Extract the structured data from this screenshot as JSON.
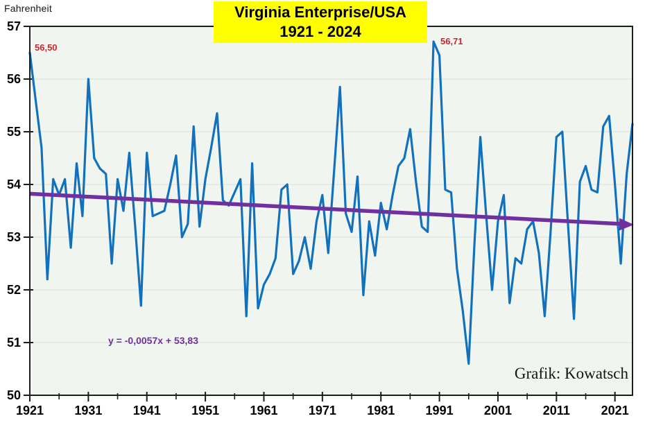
{
  "header": {
    "title_line1": "Virginia Enterprise/USA",
    "title_line2": "1921 - 2024",
    "unit_label": "Fahrenheit"
  },
  "annotations": {
    "start_value": "56,50",
    "peak_value": "56,71",
    "trend_equation": "y = -0,0057x + 53,83",
    "credit": "Grafik: Kowatsch"
  },
  "colors": {
    "series_line": "#1271bc",
    "trend_line": "#7030a0",
    "annotation_red": "#c82830",
    "title_background": "#ffff00",
    "plot_background": "#f1f5ef",
    "gridline": "#d9ded6",
    "axis": "#1c1c1c",
    "tick_label": "#000000"
  },
  "chart_data": {
    "type": "line",
    "title": "Virginia Enterprise/USA 1921 - 2024",
    "xlabel": "",
    "ylabel": "Fahrenheit",
    "xlim": [
      1921,
      2024
    ],
    "ylim": [
      50,
      57
    ],
    "grid": "horizontal",
    "legend_position": "none",
    "x_tick_labels": [
      "1921",
      "1931",
      "1941",
      "1951",
      "1961",
      "1971",
      "1981",
      "1991",
      "2001",
      "2011",
      "2021"
    ],
    "x_minor_tick_step": 5,
    "y_tick_labels": [
      "50",
      "51",
      "52",
      "53",
      "54",
      "55",
      "56",
      "57"
    ],
    "years": [
      1921,
      1922,
      1923,
      1924,
      1925,
      1926,
      1927,
      1928,
      1929,
      1930,
      1931,
      1932,
      1933,
      1934,
      1935,
      1936,
      1937,
      1938,
      1939,
      1940,
      1941,
      1942,
      1943,
      1944,
      1945,
      1946,
      1947,
      1948,
      1949,
      1950,
      1951,
      1952,
      1953,
      1954,
      1955,
      1956,
      1957,
      1958,
      1959,
      1960,
      1961,
      1962,
      1963,
      1964,
      1965,
      1966,
      1967,
      1968,
      1969,
      1970,
      1971,
      1972,
      1973,
      1974,
      1975,
      1976,
      1977,
      1978,
      1979,
      1980,
      1981,
      1982,
      1983,
      1984,
      1985,
      1986,
      1987,
      1988,
      1989,
      1990,
      1991,
      1992,
      1993,
      1994,
      1995,
      1996,
      1997,
      1998,
      1999,
      2000,
      2001,
      2002,
      2003,
      2004,
      2005,
      2006,
      2007,
      2008,
      2009,
      2010,
      2011,
      2012,
      2013,
      2014,
      2015,
      2016,
      2017,
      2018,
      2019,
      2020,
      2021,
      2022,
      2023,
      2024
    ],
    "values": [
      56.5,
      55.6,
      54.7,
      52.2,
      54.1,
      53.8,
      54.1,
      52.8,
      54.4,
      53.4,
      56.0,
      54.5,
      54.3,
      54.2,
      52.5,
      54.1,
      53.5,
      54.6,
      53.2,
      51.7,
      54.6,
      53.4,
      53.45,
      53.5,
      54.0,
      54.55,
      53.0,
      53.25,
      55.1,
      53.2,
      54.1,
      54.7,
      55.35,
      53.7,
      53.6,
      53.85,
      54.1,
      51.5,
      54.4,
      51.65,
      52.1,
      52.3,
      52.6,
      53.9,
      54.0,
      52.3,
      52.55,
      53.0,
      52.4,
      53.3,
      53.8,
      52.7,
      54.25,
      55.85,
      53.45,
      53.1,
      54.15,
      51.9,
      53.3,
      52.65,
      53.65,
      53.15,
      53.8,
      54.35,
      54.5,
      55.05,
      54.05,
      53.2,
      53.1,
      56.71,
      56.45,
      53.9,
      53.85,
      52.4,
      51.6,
      50.6,
      52.9,
      54.9,
      53.4,
      52.0,
      53.3,
      53.8,
      51.75,
      52.6,
      52.5,
      53.15,
      53.3,
      52.7,
      51.5,
      53.1,
      54.9,
      55.0,
      53.2,
      51.45,
      54.05,
      54.35,
      53.9,
      53.85,
      55.1,
      55.3,
      54.0,
      52.5,
      54.2,
      55.15
    ],
    "trend": {
      "equation_text": "y = -0,0057x + 53,83",
      "slope_per_year": -0.0057,
      "intercept_at_1921": 53.8243,
      "style": "arrow-right"
    }
  }
}
